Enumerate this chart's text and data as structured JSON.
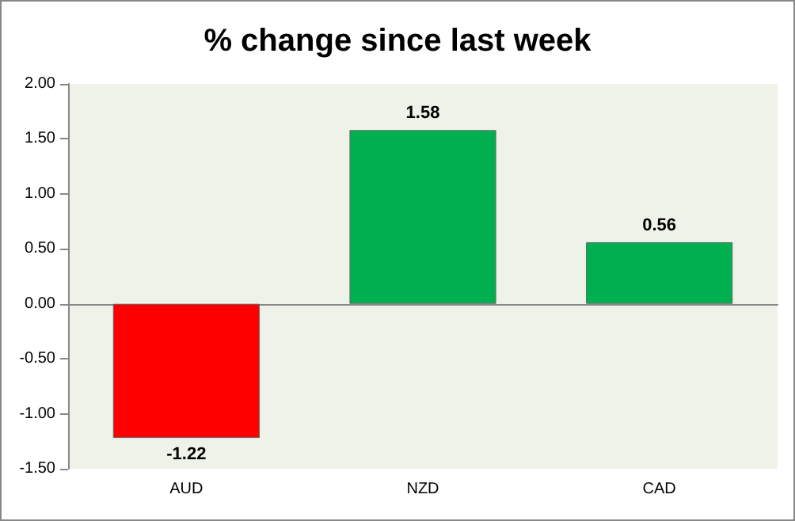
{
  "chart_data": {
    "type": "bar",
    "title": "% change since last week",
    "categories": [
      "AUD",
      "NZD",
      "CAD"
    ],
    "values": [
      -1.22,
      1.58,
      0.56
    ],
    "colors": [
      "#ff0000",
      "#00b050",
      "#00b050"
    ],
    "ylim": [
      -1.5,
      2
    ],
    "yticks": [
      {
        "value": -1.5,
        "label": "-1.50"
      },
      {
        "value": -1,
        "label": "-1.00"
      },
      {
        "value": -0.5,
        "label": "-0.50"
      },
      {
        "value": 0,
        "label": "0.00"
      },
      {
        "value": 0.5,
        "label": "0.50"
      },
      {
        "value": 1,
        "label": "1.00"
      },
      {
        "value": 1.5,
        "label": "1.50"
      },
      {
        "value": 2,
        "label": "2.00"
      }
    ],
    "data_labels": true
  }
}
